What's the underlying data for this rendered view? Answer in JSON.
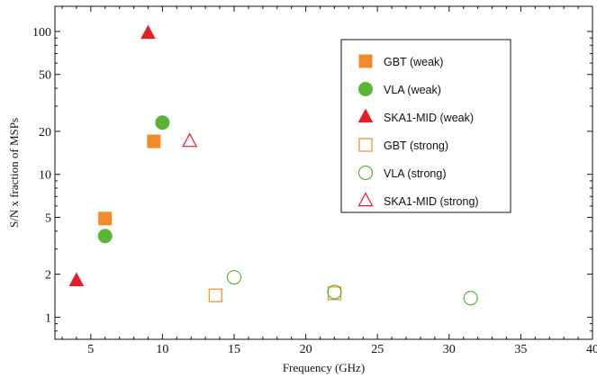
{
  "chart_data": {
    "type": "scatter",
    "xlabel": "Frequency (GHz)",
    "ylabel": "S/N x fraction of MSPs",
    "xlim": [
      2.5,
      40
    ],
    "ylim": [
      0.7,
      150
    ],
    "yscale": "log",
    "x_ticks": [
      5,
      10,
      15,
      20,
      25,
      30,
      35,
      40
    ],
    "x_tick_labels": [
      "5",
      "10",
      "15",
      "20",
      "25",
      "30",
      "35",
      "40"
    ],
    "y_ticks": [
      1,
      2,
      5,
      10,
      20,
      50,
      100
    ],
    "y_tick_labels": [
      "1",
      "2",
      "5",
      "10",
      "20",
      "50",
      "100"
    ],
    "grid": false,
    "legend_position": "top-right",
    "series": [
      {
        "name": "GBT (weak)",
        "marker": "square",
        "filled": true,
        "color": "#f28a28",
        "points": [
          {
            "x": 6,
            "y": 4.9
          },
          {
            "x": 9.4,
            "y": 17
          }
        ]
      },
      {
        "name": "VLA (weak)",
        "marker": "circle",
        "filled": true,
        "color": "#5ab532",
        "points": [
          {
            "x": 6,
            "y": 3.7
          },
          {
            "x": 10,
            "y": 23
          }
        ]
      },
      {
        "name": "SKA1-MID (weak)",
        "marker": "triangle",
        "filled": true,
        "color": "#e41e26",
        "points": [
          {
            "x": 4,
            "y": 1.8
          },
          {
            "x": 9,
            "y": 97
          }
        ]
      },
      {
        "name": "GBT (strong)",
        "marker": "square",
        "filled": false,
        "color": "#f28a28",
        "points": [
          {
            "x": 13.7,
            "y": 1.42
          },
          {
            "x": 22,
            "y": 1.47
          }
        ]
      },
      {
        "name": "VLA (strong)",
        "marker": "circle",
        "filled": false,
        "color": "#5ab532",
        "points": [
          {
            "x": 15,
            "y": 1.9
          },
          {
            "x": 22,
            "y": 1.5
          },
          {
            "x": 31.5,
            "y": 1.36
          }
        ]
      },
      {
        "name": "SKA1-MID (strong)",
        "marker": "triangle",
        "filled": false,
        "color": "#e41e26",
        "points": [
          {
            "x": 11.9,
            "y": 17
          }
        ]
      }
    ]
  }
}
